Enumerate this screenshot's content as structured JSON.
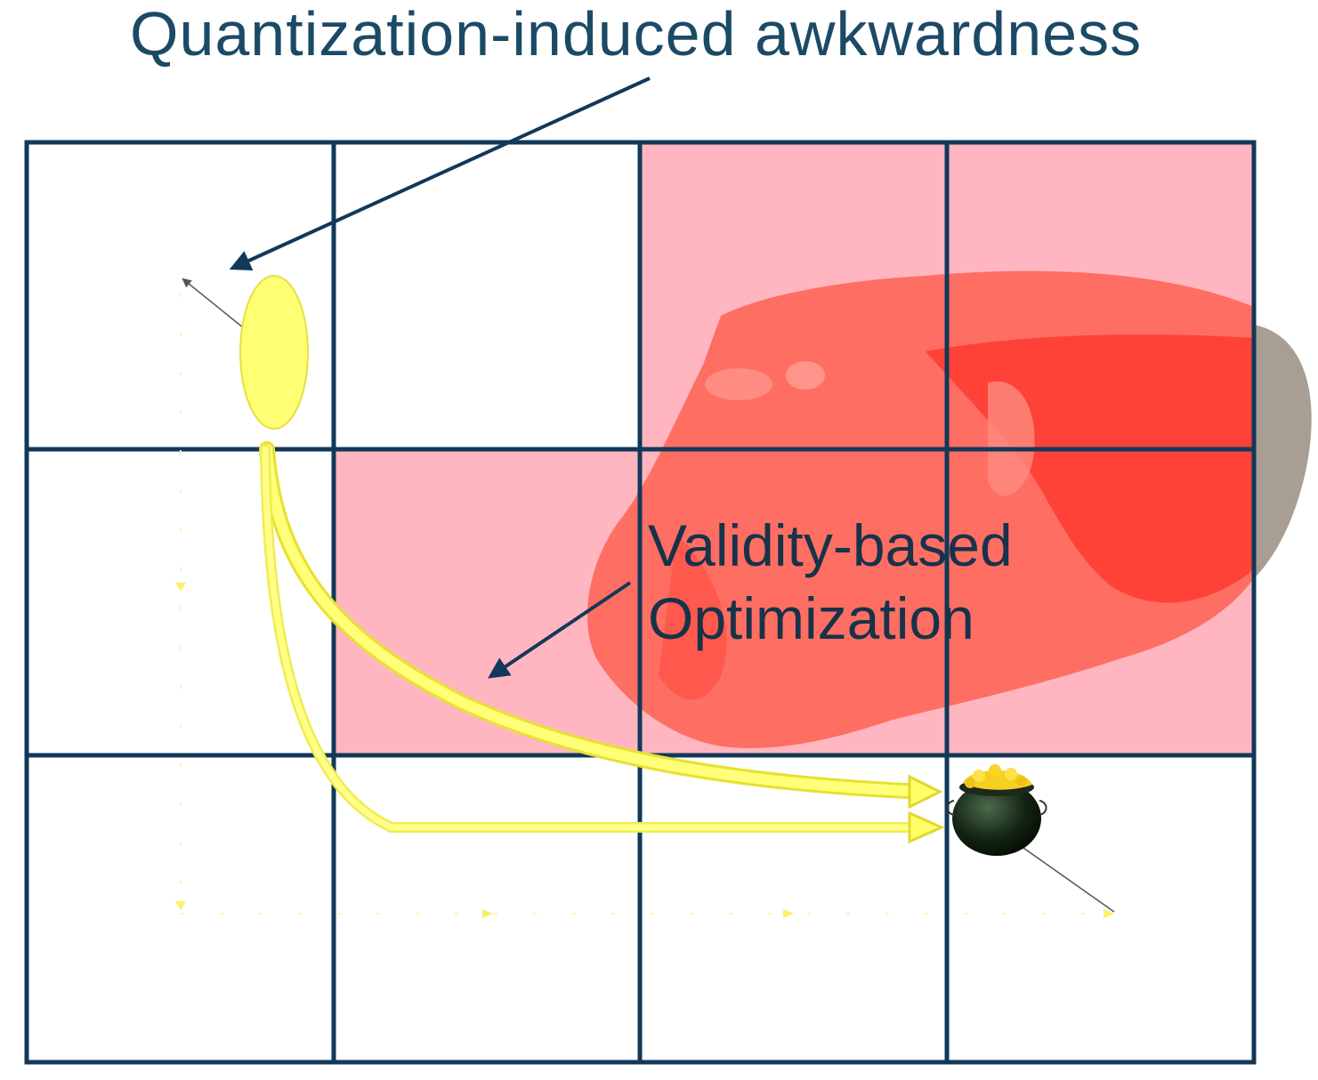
{
  "title": "Quantization-induced awkwardness",
  "label_validity_line1": "Validity-based",
  "label_validity_line2": "Optimization",
  "colors": {
    "grid": "#12385a",
    "invalid_cell": "#ffb3bf",
    "blob": "#ff5548",
    "start_ellipse": "#ffff70",
    "paths": "#ffff66",
    "text": "#16334a"
  },
  "grid": {
    "rows": 3,
    "cols": 4
  },
  "invalid_cells": [
    [
      0,
      2
    ],
    [
      0,
      3
    ],
    [
      1,
      1
    ],
    [
      1,
      2
    ],
    [
      1,
      3
    ]
  ],
  "icons": [
    "start-ellipse-icon",
    "gold-pot-icon"
  ]
}
